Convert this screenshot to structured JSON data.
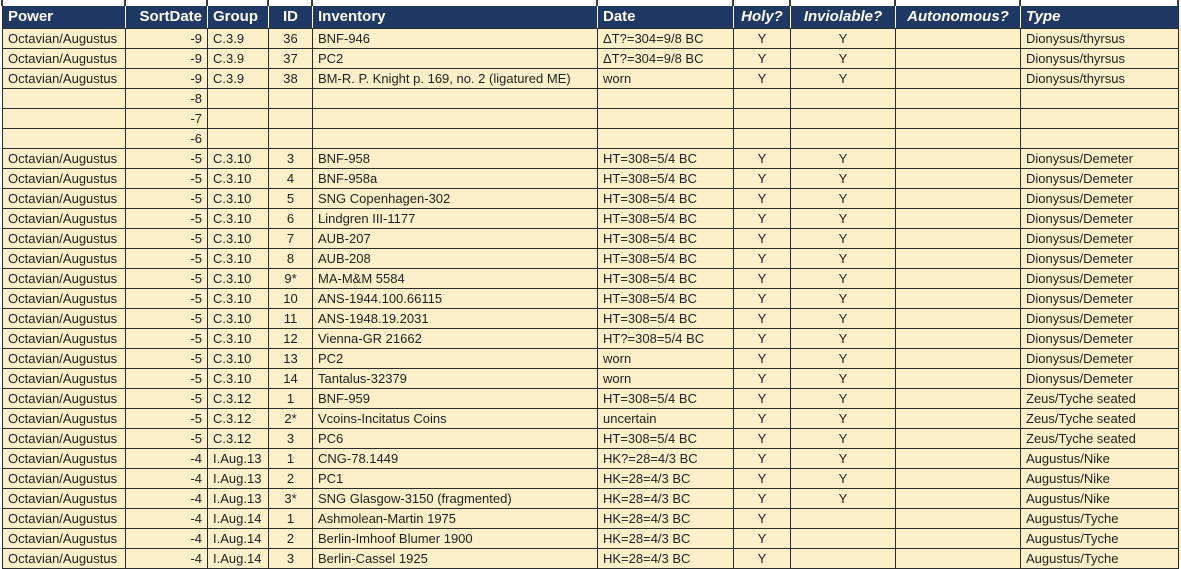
{
  "colors": {
    "header_bg": "#1F3864",
    "header_text": "#FFFFFF",
    "cell_bg": "#FCF0CA",
    "grid_line": "#2B2B2B"
  },
  "table": {
    "columns": [
      {
        "label": "Power",
        "align": "left",
        "italic": false,
        "slug": "power"
      },
      {
        "label": "SortDate",
        "align": "right",
        "italic": false,
        "slug": "sortdate"
      },
      {
        "label": "Group",
        "align": "left",
        "italic": false,
        "slug": "group"
      },
      {
        "label": "ID",
        "align": "center",
        "italic": false,
        "slug": "id"
      },
      {
        "label": "Inventory",
        "align": "left",
        "italic": false,
        "slug": "inventory"
      },
      {
        "label": "Date",
        "align": "left",
        "italic": false,
        "slug": "date"
      },
      {
        "label": "Holy?",
        "align": "center",
        "italic": true,
        "slug": "holy"
      },
      {
        "label": "Inviolable?",
        "align": "center",
        "italic": true,
        "slug": "inviolable"
      },
      {
        "label": "Autonomous?",
        "align": "center",
        "italic": true,
        "slug": "autonomous"
      },
      {
        "label": "Type",
        "align": "left",
        "italic": true,
        "slug": "type"
      }
    ],
    "rows": [
      [
        "Octavian/Augustus",
        "-9",
        "C.3.9",
        "36",
        "BNF-946",
        "ΔT?=304=9/8 BC",
        "Y",
        "Y",
        "",
        "Dionysus/thyrsus"
      ],
      [
        "Octavian/Augustus",
        "-9",
        "C.3.9",
        "37",
        "PC2",
        "ΔT?=304=9/8 BC",
        "Y",
        "Y",
        "",
        "Dionysus/thyrsus"
      ],
      [
        "Octavian/Augustus",
        "-9",
        "C.3.9",
        "38",
        "BM-R. P. Knight p. 169, no. 2 (ligatured ME)",
        "worn",
        "Y",
        "Y",
        "",
        "Dionysus/thyrsus"
      ],
      [
        "",
        "-8",
        "",
        "",
        "",
        "",
        "",
        "",
        "",
        ""
      ],
      [
        "",
        "-7",
        "",
        "",
        "",
        "",
        "",
        "",
        "",
        ""
      ],
      [
        "",
        "-6",
        "",
        "",
        "",
        "",
        "",
        "",
        "",
        ""
      ],
      [
        "Octavian/Augustus",
        "-5",
        "C.3.10",
        "3",
        "BNF-958",
        "HT=308=5/4 BC",
        "Y",
        "Y",
        "",
        "Dionysus/Demeter"
      ],
      [
        "Octavian/Augustus",
        "-5",
        "C.3.10",
        "4",
        "BNF-958a",
        "HT=308=5/4 BC",
        "Y",
        "Y",
        "",
        "Dionysus/Demeter"
      ],
      [
        "Octavian/Augustus",
        "-5",
        "C.3.10",
        "5",
        "SNG Copenhagen-302",
        "HT=308=5/4 BC",
        "Y",
        "Y",
        "",
        "Dionysus/Demeter"
      ],
      [
        "Octavian/Augustus",
        "-5",
        "C.3.10",
        "6",
        "Lindgren III-1177",
        "HT=308=5/4 BC",
        "Y",
        "Y",
        "",
        "Dionysus/Demeter"
      ],
      [
        "Octavian/Augustus",
        "-5",
        "C.3.10",
        "7",
        "AUB-207",
        "HT=308=5/4 BC",
        "Y",
        "Y",
        "",
        "Dionysus/Demeter"
      ],
      [
        "Octavian/Augustus",
        "-5",
        "C.3.10",
        "8",
        "AUB-208",
        "HT=308=5/4 BC",
        "Y",
        "Y",
        "",
        "Dionysus/Demeter"
      ],
      [
        "Octavian/Augustus",
        "-5",
        "C.3.10",
        "9*",
        "MA-M&M 5584",
        "HT=308=5/4 BC",
        "Y",
        "Y",
        "",
        "Dionysus/Demeter"
      ],
      [
        "Octavian/Augustus",
        "-5",
        "C.3.10",
        "10",
        "ANS-1944.100.66115",
        "HT=308=5/4 BC",
        "Y",
        "Y",
        "",
        "Dionysus/Demeter"
      ],
      [
        "Octavian/Augustus",
        "-5",
        "C.3.10",
        "11",
        "ANS-1948.19.2031",
        "HT=308=5/4 BC",
        "Y",
        "Y",
        "",
        "Dionysus/Demeter"
      ],
      [
        "Octavian/Augustus",
        "-5",
        "C.3.10",
        "12",
        "Vienna-GR 21662",
        "HT?=308=5/4 BC",
        "Y",
        "Y",
        "",
        "Dionysus/Demeter"
      ],
      [
        "Octavian/Augustus",
        "-5",
        "C.3.10",
        "13",
        "PC2",
        "worn",
        "Y",
        "Y",
        "",
        "Dionysus/Demeter"
      ],
      [
        "Octavian/Augustus",
        "-5",
        "C.3.10",
        "14",
        "Tantalus-32379",
        "worn",
        "Y",
        "Y",
        "",
        "Dionysus/Demeter"
      ],
      [
        "Octavian/Augustus",
        "-5",
        "C.3.12",
        "1",
        "BNF-959",
        "HT=308=5/4 BC",
        "Y",
        "Y",
        "",
        "Zeus/Tyche seated"
      ],
      [
        "Octavian/Augustus",
        "-5",
        "C.3.12",
        "2*",
        "Vcoins-Incitatus Coins",
        "uncertain",
        "Y",
        "Y",
        "",
        "Zeus/Tyche seated"
      ],
      [
        "Octavian/Augustus",
        "-5",
        "C.3.12",
        "3",
        "PC6",
        "HT=308=5/4 BC",
        "Y",
        "Y",
        "",
        "Zeus/Tyche seated"
      ],
      [
        "Octavian/Augustus",
        "-4",
        "I.Aug.13",
        "1",
        "CNG-78.1449",
        "HK?=28=4/3 BC",
        "Y",
        "Y",
        "",
        "Augustus/Nike"
      ],
      [
        "Octavian/Augustus",
        "-4",
        "I.Aug.13",
        "2",
        "PC1",
        "HK=28=4/3 BC",
        "Y",
        "Y",
        "",
        "Augustus/Nike"
      ],
      [
        "Octavian/Augustus",
        "-4",
        "I.Aug.13",
        "3*",
        "SNG Glasgow-3150 (fragmented)",
        "HK=28=4/3 BC",
        "Y",
        "Y",
        "",
        "Augustus/Nike"
      ],
      [
        "Octavian/Augustus",
        "-4",
        "I.Aug.14",
        "1",
        "Ashmolean-Martin 1975",
        "HK=28=4/3 BC",
        "Y",
        "",
        "",
        "Augustus/Tyche"
      ],
      [
        "Octavian/Augustus",
        "-4",
        "I.Aug.14",
        "2",
        "Berlin-Imhoof Blumer 1900",
        "HK=28=4/3 BC",
        "Y",
        "",
        "",
        "Augustus/Tyche"
      ],
      [
        "Octavian/Augustus",
        "-4",
        "I.Aug.14",
        "3",
        "Berlin-Cassel 1925",
        "HK=28=4/3 BC",
        "Y",
        "",
        "",
        "Augustus/Tyche"
      ]
    ]
  }
}
